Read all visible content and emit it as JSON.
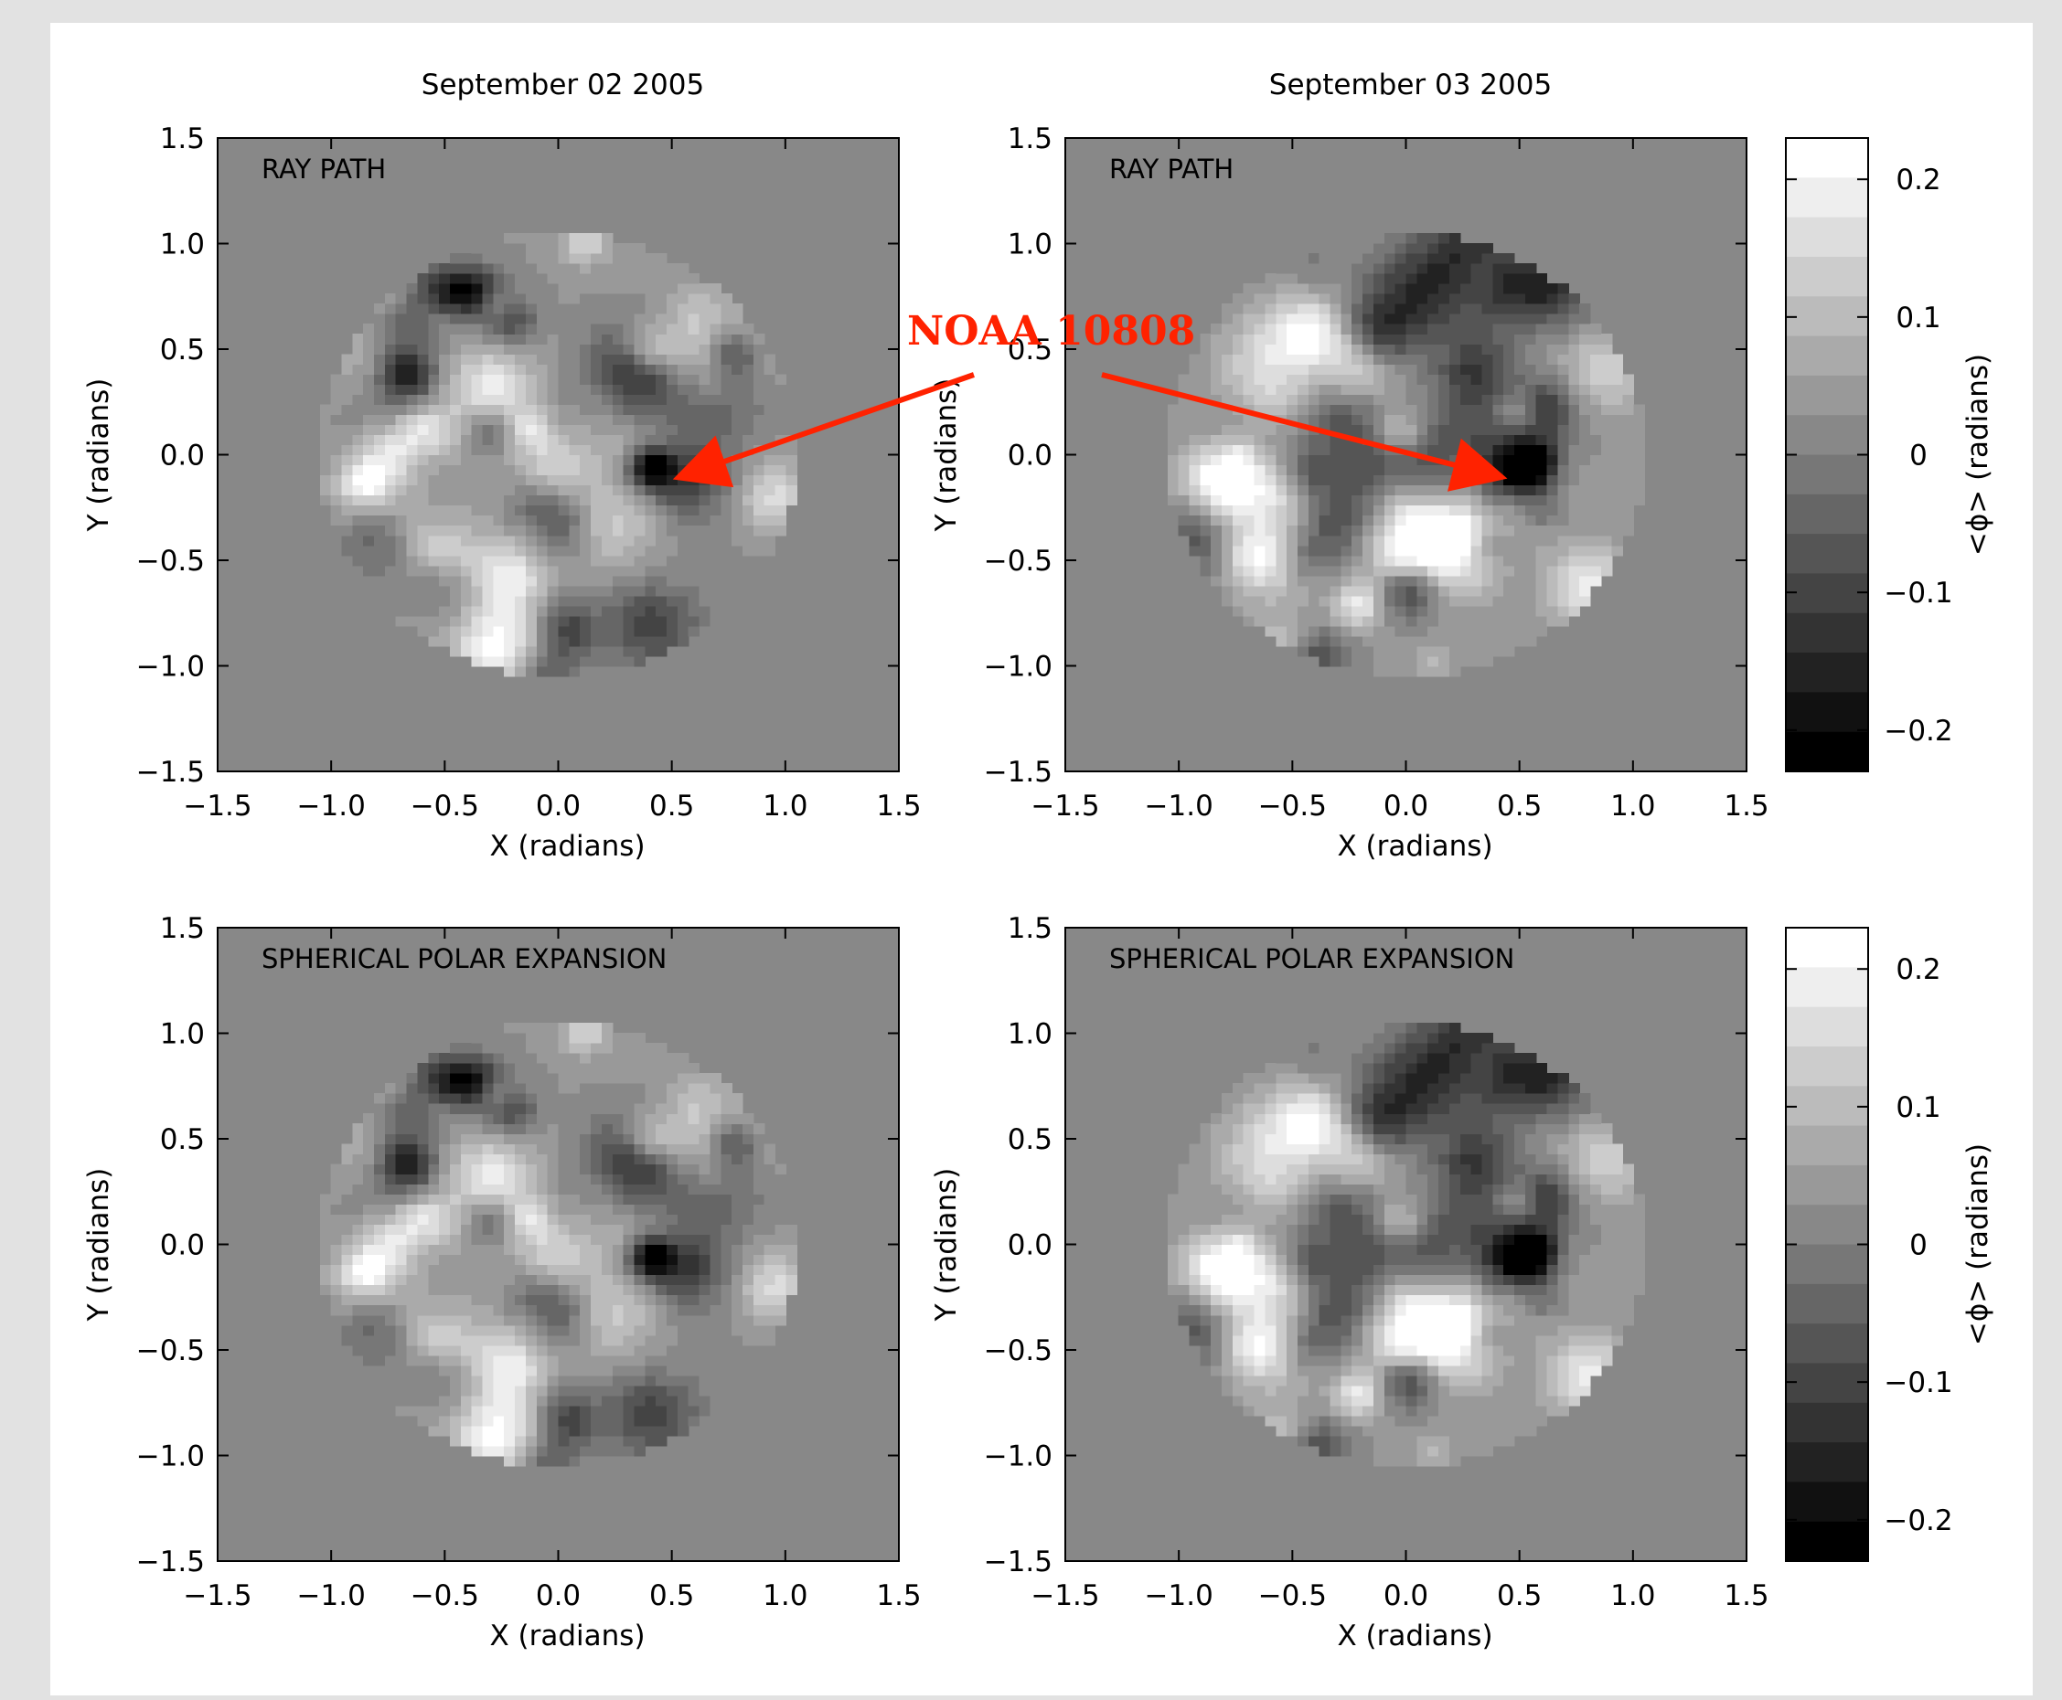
{
  "chart_data": {
    "type": "heatmap",
    "layout": "2x2 grid of maps with two colorbars",
    "panels": [
      {
        "title": "September 02 2005",
        "label": "RAY PATH",
        "xlabel": "X (radians)",
        "ylabel": "Y (radians)",
        "xlim": [
          -1.5,
          1.5
        ],
        "ylim": [
          -1.5,
          1.5
        ],
        "disk_center": [
          0.0,
          0.0
        ],
        "disk_radius": 1.05,
        "background_value": 0.0,
        "dark_spot": [
          0.4,
          -0.05
        ],
        "seed": 11
      },
      {
        "title": "September 03 2005",
        "label": "RAY PATH",
        "xlabel": "X (radians)",
        "ylabel": "Y (radians)",
        "xlim": [
          -1.5,
          1.5
        ],
        "ylim": [
          -1.5,
          1.5
        ],
        "disk_center": [
          0.0,
          0.0
        ],
        "disk_radius": 1.05,
        "background_value": 0.0,
        "dark_spot": [
          0.55,
          -0.05
        ],
        "seed": 23
      },
      {
        "title": "",
        "label": "SPHERICAL POLAR EXPANSION",
        "xlabel": "X (radians)",
        "ylabel": "Y (radians)",
        "xlim": [
          -1.5,
          1.5
        ],
        "ylim": [
          -1.5,
          1.5
        ],
        "disk_center": [
          0.0,
          0.0
        ],
        "disk_radius": 1.05,
        "background_value": 0.0,
        "dark_spot": [
          0.4,
          -0.05
        ],
        "seed": 11
      },
      {
        "title": "",
        "label": "SPHERICAL POLAR EXPANSION",
        "xlabel": "X (radians)",
        "ylabel": "Y (radians)",
        "xlim": [
          -1.5,
          1.5
        ],
        "ylim": [
          -1.5,
          1.5
        ],
        "disk_center": [
          0.0,
          0.0
        ],
        "disk_radius": 1.05,
        "background_value": 0.0,
        "dark_spot": [
          0.55,
          -0.05
        ],
        "seed": 23
      }
    ],
    "x_ticks": [
      "−1.5",
      "−1.0",
      "−0.5",
      "0.0",
      "0.5",
      "1.0",
      "1.5"
    ],
    "y_ticks": [
      "1.5",
      "1.0",
      "0.5",
      "0.0",
      "−0.5",
      "−1.0",
      "−1.5"
    ],
    "colorbar": {
      "label": "<ϕ> (radians)",
      "range": [
        -0.23,
        0.23
      ],
      "levels": 16,
      "ticks": [
        "0.2",
        "0.1",
        "0",
        "−0.1",
        "−0.2"
      ],
      "colormap": "grayscale"
    },
    "annotation": {
      "text": "NOAA 10808",
      "color": "#ff2200",
      "points_to": [
        {
          "panel": 0,
          "x": 0.55,
          "y": -0.1
        },
        {
          "panel": 1,
          "x": 0.4,
          "y": -0.1
        }
      ]
    }
  }
}
